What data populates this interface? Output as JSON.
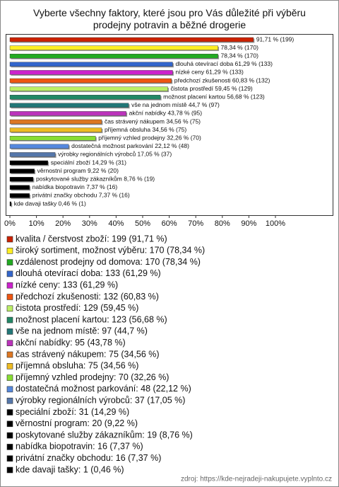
{
  "chart_data": {
    "type": "bar",
    "orientation": "horizontal",
    "title": "Vyberte všechny faktory, které jsou pro Vás důležité při výběru prodejny potravin a běžné drogerie",
    "categories": [
      "kvalita / čerstvost zboží: 199 (91,71 %)",
      "široký sortiment, možnost výběru: 170 (78,34 %)",
      "vzdálenost prodejny od domova: 170 (78,34 %)",
      "dlouhá otevírací doba: 133 (61,29 %)",
      "nízké ceny: 133 (61,29 %)",
      "předchozí zkušenosti: 132 (60,83 %)",
      "čistota prostředí: 129 (59,45 %)",
      "možnost placení kartou: 123 (56,68 %)",
      "vše na jednom místě: 97 (44,7 %)",
      "akční nabídky: 95 (43,78 %)",
      "čas strávený nákupem: 75 (34,56 %)",
      "příjemná obsluha: 75 (34,56 %)",
      "příjemný vzhled prodejny: 70 (32,26 %)",
      "dostatečná možnost parkování: 48 (22,12 %)",
      "výrobky regionálních výrobců: 37 (17,05 %)",
      "speciální zboží: 31 (14,29 %)",
      "věrnostní program: 20 (9,22 %)",
      "poskytované služby zákazníkům: 19 (8,76 %)",
      "nabídka biopotravin: 16 (7,37 %)",
      "privátní značky obchodu: 16 (7,37 %)",
      "kde davaji tašky: 1 (0,46 %)"
    ],
    "values": [
      91.71,
      78.34,
      78.34,
      61.29,
      61.29,
      60.83,
      59.45,
      56.68,
      44.7,
      43.78,
      34.56,
      34.56,
      32.26,
      22.12,
      17.05,
      14.29,
      9.22,
      8.76,
      7.37,
      7.37,
      0.46
    ],
    "value_labels": [
      "91,71 % (199)",
      "78,34 % (170)",
      "78,34 % (170)",
      "dlouhá otevírací doba 61,29 % (133)",
      "nízké ceny 61,29 % (133)",
      "předchozí zkušenosti 60,83 % (132)",
      "čistota prostředí 59,45 % (129)",
      "možnost placení kartou 56,68 % (123)",
      "vše na jednom místě 44,7 % (97)",
      "akční nabídky 43,78 % (95)",
      "čas strávený nákupem 34,56 % (75)",
      "příjemná obsluha 34,56 % (75)",
      "příjemný vzhled prodejny 32,26 % (70)",
      "dostatečná možnost parkování 22,12 % (48)",
      "výrobky regionálních výrobců 17,05 % (37)",
      "speciální zboží 14,29 % (31)",
      "věrnostní program 9,22 % (20)",
      "poskytované služby zákazníkům 8,76 % (19)",
      "nabídka biopotravin 7,37 % (16)",
      "privátní značky obchodu 7,37 % (16)",
      "kde davaji tašky 0,46 % (1)"
    ],
    "colors": [
      "#cc2200",
      "#ffee22",
      "#22aa22",
      "#3366cc",
      "#cc22cc",
      "#ee5511",
      "#bbee66",
      "#228866",
      "#227777",
      "#bb33bb",
      "#dd7722",
      "#eebb22",
      "#88dd33",
      "#5588dd",
      "#5577aa",
      "#000000",
      "#000000",
      "#000000",
      "#000000",
      "#000000",
      "#000000"
    ],
    "xlim": [
      0,
      100
    ],
    "xticks": [
      {
        "value": 0,
        "label": "0%"
      },
      {
        "value": 10,
        "label": "10%"
      },
      {
        "value": 20,
        "label": "20%"
      },
      {
        "value": 30,
        "label": "30%"
      },
      {
        "value": 40,
        "label": "40%"
      },
      {
        "value": 50,
        "label": "50%"
      },
      {
        "value": 60,
        "label": "60%"
      },
      {
        "value": 70,
        "label": "70%"
      },
      {
        "value": 80,
        "label": "80%"
      },
      {
        "value": 90,
        "label": "90%"
      },
      {
        "value": 100,
        "label": "100%"
      }
    ],
    "source": "zdroj: https://kde-nejradeji-nakupujete.vyplnto.cz"
  }
}
